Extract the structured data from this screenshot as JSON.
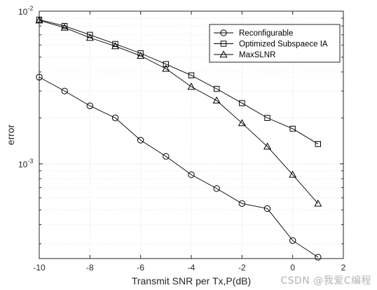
{
  "chart_data": {
    "type": "line",
    "xlabel": "Transmit SNR per Tx,P(dB)",
    "ylabel": "error",
    "x_ticks": [
      "-10",
      "-8",
      "-6",
      "-4",
      "-2",
      "0",
      "2"
    ],
    "y_ticks": [
      {
        "base": "10",
        "exp": "-2",
        "value": 0.01
      },
      {
        "base": "10",
        "exp": "-3",
        "value": 0.001
      }
    ],
    "xlim": [
      -10,
      2
    ],
    "ylim": [
      0.00024,
      0.01
    ],
    "y_scale": "log",
    "grid": true,
    "legend_position": "top-right",
    "series": [
      {
        "name": "Reconfigurable",
        "marker": "circle",
        "x": [
          -10,
          -9,
          -8,
          -7,
          -6,
          -5,
          -4,
          -3,
          -2,
          -1,
          0,
          1
        ],
        "values": [
          0.0037,
          0.003,
          0.0024,
          0.002,
          0.00143,
          0.00112,
          0.00085,
          0.00069,
          0.00055,
          0.00051,
          0.000315,
          0.000245
        ]
      },
      {
        "name": "Optimized Subspaece IA",
        "marker": "square",
        "x": [
          -10,
          -9,
          -8,
          -7,
          -6,
          -5,
          -4,
          -3,
          -2,
          -1,
          0,
          1
        ],
        "values": [
          0.0088,
          0.008,
          0.007,
          0.0061,
          0.0053,
          0.0045,
          0.0038,
          0.0031,
          0.0025,
          0.002,
          0.0017,
          0.00135
        ]
      },
      {
        "name": "MaxSLNR",
        "marker": "triangle",
        "x": [
          -10,
          -9,
          -8,
          -7,
          -6,
          -5,
          -4,
          -3,
          -2,
          -1,
          0,
          1
        ],
        "values": [
          0.0087,
          0.0078,
          0.0067,
          0.0059,
          0.0051,
          0.0042,
          0.0032,
          0.0026,
          0.00185,
          0.0013,
          0.00085,
          0.00055
        ]
      }
    ]
  },
  "watermark": "CSDN @我爱C编程"
}
